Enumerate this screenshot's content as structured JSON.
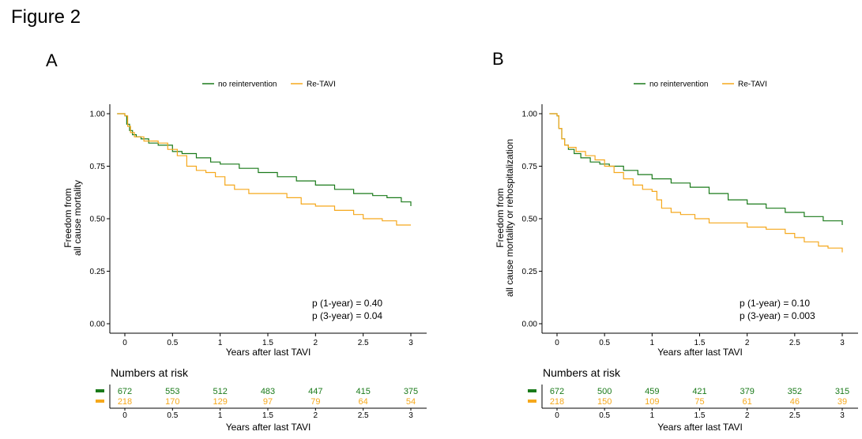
{
  "figure_title": "Figure 2",
  "colors": {
    "no_reintervention": "#1a7a1a",
    "re_tavi": "#f5a81c",
    "axis": "#000000"
  },
  "chart_data": [
    {
      "panel": "A",
      "type": "line",
      "step": true,
      "xlabel": "Years after last TAVI",
      "ylabel": [
        "Freedom from",
        "all cause mortality"
      ],
      "xlim": [
        0,
        3
      ],
      "ylim": [
        0,
        1
      ],
      "x_ticks": [
        0,
        0.5,
        1,
        1.5,
        2,
        2.5,
        3
      ],
      "x_tick_labels": [
        "0",
        "0.5",
        "1",
        "1.5",
        "2",
        "2.5",
        "3"
      ],
      "y_ticks": [
        0,
        0.25,
        0.5,
        0.75,
        1
      ],
      "y_tick_labels": [
        "0.00",
        "0.25",
        "0.50",
        "0.75",
        "1.00"
      ],
      "legend": [
        "no reintervention",
        "Re-TAVI"
      ],
      "legend_position": "top",
      "grid": false,
      "annotations": [
        "p (1-year) = 0.40",
        "p (3-year) = 0.04"
      ],
      "series": [
        {
          "name": "no reintervention",
          "color": "#1a7a1a",
          "x": [
            -0.08,
            0,
            0.02,
            0.05,
            0.08,
            0.12,
            0.17,
            0.25,
            0.35,
            0.5,
            0.6,
            0.75,
            0.9,
            1.0,
            1.2,
            1.4,
            1.6,
            1.8,
            2.0,
            2.2,
            2.4,
            2.6,
            2.75,
            2.9,
            3.0
          ],
          "y": [
            1.0,
            0.99,
            0.95,
            0.92,
            0.9,
            0.89,
            0.88,
            0.86,
            0.85,
            0.82,
            0.81,
            0.79,
            0.77,
            0.76,
            0.74,
            0.72,
            0.7,
            0.68,
            0.66,
            0.64,
            0.62,
            0.61,
            0.6,
            0.58,
            0.56
          ]
        },
        {
          "name": "Re-TAVI",
          "color": "#f5a81c",
          "x": [
            -0.08,
            0,
            0.03,
            0.06,
            0.1,
            0.2,
            0.35,
            0.45,
            0.55,
            0.65,
            0.75,
            0.85,
            0.95,
            1.05,
            1.15,
            1.3,
            1.55,
            1.7,
            1.85,
            2.0,
            2.2,
            2.4,
            2.5,
            2.7,
            2.85,
            3.0
          ],
          "y": [
            1.0,
            0.99,
            0.94,
            0.91,
            0.89,
            0.87,
            0.86,
            0.83,
            0.8,
            0.75,
            0.73,
            0.72,
            0.7,
            0.66,
            0.64,
            0.62,
            0.62,
            0.6,
            0.57,
            0.56,
            0.54,
            0.52,
            0.5,
            0.49,
            0.47,
            0.47
          ]
        }
      ],
      "risk_table": {
        "title": "Numbers at risk",
        "xlabel": "Years after last TAVI",
        "rows": [
          {
            "name": "no reintervention",
            "color": "#1a7a1a",
            "values": [
              "672",
              "553",
              "512",
              "483",
              "447",
              "415",
              "375"
            ]
          },
          {
            "name": "Re-TAVI",
            "color": "#f5a81c",
            "values": [
              "218",
              "170",
              "129",
              "97",
              "79",
              "64",
              "54"
            ]
          }
        ]
      }
    },
    {
      "panel": "B",
      "type": "line",
      "step": true,
      "xlabel": "Years after last TAVI",
      "ylabel": [
        "Freedom from",
        "all cause mortality or rehospitalization"
      ],
      "xlim": [
        0,
        3
      ],
      "ylim": [
        0,
        1
      ],
      "x_ticks": [
        0,
        0.5,
        1,
        1.5,
        2,
        2.5,
        3
      ],
      "x_tick_labels": [
        "0",
        "0.5",
        "1",
        "1.5",
        "2",
        "2.5",
        "3"
      ],
      "y_ticks": [
        0,
        0.25,
        0.5,
        0.75,
        1
      ],
      "y_tick_labels": [
        "0.00",
        "0.25",
        "0.50",
        "0.75",
        "1.00"
      ],
      "legend": [
        "no reintervention",
        "Re-TAVI"
      ],
      "legend_position": "top",
      "grid": false,
      "annotations": [
        "p (1-year) = 0.10",
        "p (3-year) = 0.003"
      ],
      "series": [
        {
          "name": "no reintervention",
          "color": "#1a7a1a",
          "x": [
            -0.08,
            0,
            0.02,
            0.05,
            0.08,
            0.12,
            0.18,
            0.25,
            0.35,
            0.45,
            0.55,
            0.7,
            0.85,
            1.0,
            1.2,
            1.4,
            1.6,
            1.8,
            2.0,
            2.2,
            2.4,
            2.6,
            2.8,
            3.0
          ],
          "y": [
            1.0,
            0.99,
            0.93,
            0.88,
            0.85,
            0.83,
            0.81,
            0.79,
            0.77,
            0.76,
            0.75,
            0.73,
            0.71,
            0.69,
            0.67,
            0.65,
            0.62,
            0.59,
            0.57,
            0.55,
            0.53,
            0.51,
            0.49,
            0.47
          ]
        },
        {
          "name": "Re-TAVI",
          "color": "#f5a81c",
          "x": [
            -0.08,
            0,
            0.02,
            0.05,
            0.08,
            0.12,
            0.2,
            0.3,
            0.4,
            0.5,
            0.6,
            0.7,
            0.8,
            0.9,
            1.0,
            1.05,
            1.1,
            1.2,
            1.3,
            1.45,
            1.6,
            1.8,
            2.0,
            2.2,
            2.4,
            2.5,
            2.6,
            2.75,
            2.85,
            3.0
          ],
          "y": [
            1.0,
            0.99,
            0.93,
            0.88,
            0.85,
            0.84,
            0.82,
            0.8,
            0.78,
            0.75,
            0.72,
            0.69,
            0.66,
            0.64,
            0.63,
            0.59,
            0.55,
            0.53,
            0.52,
            0.5,
            0.48,
            0.48,
            0.46,
            0.45,
            0.43,
            0.41,
            0.39,
            0.37,
            0.36,
            0.34
          ]
        }
      ],
      "risk_table": {
        "title": "Numbers at risk",
        "xlabel": "Years after last TAVI",
        "rows": [
          {
            "name": "no reintervention",
            "color": "#1a7a1a",
            "values": [
              "672",
              "500",
              "459",
              "421",
              "379",
              "352",
              "315"
            ]
          },
          {
            "name": "Re-TAVI",
            "color": "#f5a81c",
            "values": [
              "218",
              "150",
              "109",
              "75",
              "61",
              "46",
              "39"
            ]
          }
        ]
      }
    }
  ]
}
